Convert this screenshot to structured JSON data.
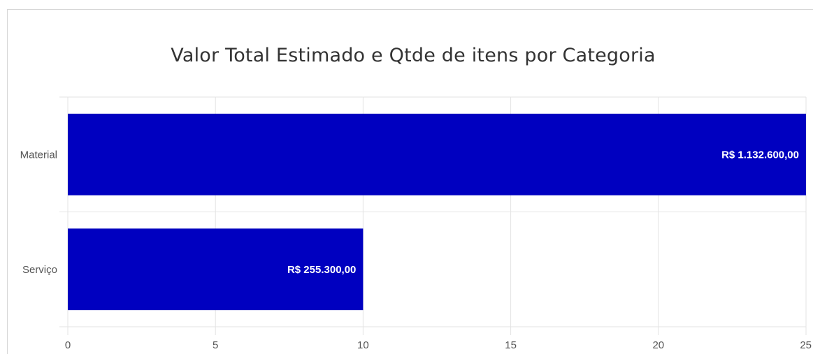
{
  "chart_data": {
    "type": "bar",
    "orientation": "horizontal",
    "title": "Valor Total Estimado e Qtde de itens por Categoria",
    "categories": [
      "Material",
      "Serviço"
    ],
    "values": [
      25,
      10
    ],
    "data_labels": [
      "R$ 1.132.600,00",
      "R$ 255.300,00"
    ],
    "xlim": [
      0,
      25
    ],
    "xticks": [
      0,
      5,
      10,
      15,
      20,
      25
    ],
    "xlabel": "",
    "ylabel": "",
    "grid": true,
    "legend": "none",
    "colors": {
      "bar": "#0000c0",
      "grid": "#e3e3e3",
      "axis_text": "#555555"
    }
  }
}
